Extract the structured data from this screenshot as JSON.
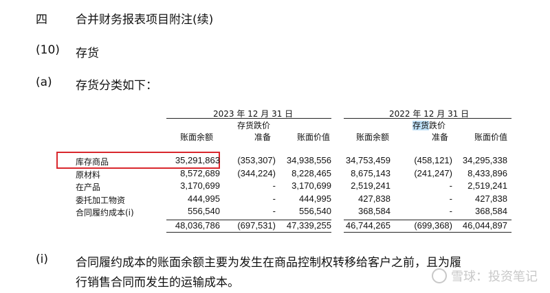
{
  "heading": {
    "section_no": "四",
    "title": "合并财务报表项目附注(续)"
  },
  "subheading": {
    "no": "(10)",
    "title": "存货"
  },
  "sub_a": {
    "no": "(a)",
    "title": "存货分类如下："
  },
  "table": {
    "period_2023": "2023 年 12 月 31 日",
    "period_2022_prefix": "2022 年 12 月 31 日",
    "col_book_balance": "账面余额",
    "col_provision_line1": "存货跌价",
    "col_provision_line1_hl": "存货",
    "col_provision_line1_rest": "跌价",
    "col_provision_line2": "准备",
    "col_carrying": "账面价值",
    "rows": [
      {
        "label": "库存商品",
        "c1": "35,291,863",
        "c2": "(353,307)",
        "c3": "34,938,556",
        "c4": "34,753,459",
        "c5": "(458,121)",
        "c6": "34,295,338"
      },
      {
        "label": "原材料",
        "c1": "8,572,689",
        "c2": "(344,224)",
        "c3": "8,228,465",
        "c4": "8,675,143",
        "c5": "(241,247)",
        "c6": "8,433,896"
      },
      {
        "label": "在产品",
        "c1": "3,170,699",
        "c2": "-",
        "c3": "3,170,699",
        "c4": "2,519,241",
        "c5": "-",
        "c6": "2,519,241"
      },
      {
        "label": "委托加工物资",
        "c1": "444,995",
        "c2": "-",
        "c3": "444,995",
        "c4": "427,838",
        "c5": "-",
        "c6": "427,838"
      },
      {
        "label": "合同履约成本(i)",
        "c1": "556,540",
        "c2": "-",
        "c3": "556,540",
        "c4": "368,584",
        "c5": "-",
        "c6": "368,584"
      }
    ],
    "total": {
      "c1": "48,036,786",
      "c2": "(697,531)",
      "c3": "47,339,255",
      "c4": "46,744,265",
      "c5": "(699,368)",
      "c6": "46,044,897"
    }
  },
  "note_i": {
    "no": "(i)",
    "line1": "合同履约成本的账面余额主要为发生在商品控制权转移给客户之前，且为履",
    "line2": "行销售合同而发生的运输成本。"
  },
  "watermark": {
    "text": "雪球：投资笔记",
    "icon": "snowball-logo-icon"
  },
  "colors": {
    "highlight_box": "#d9262c",
    "selection": "#bfe0f7"
  }
}
